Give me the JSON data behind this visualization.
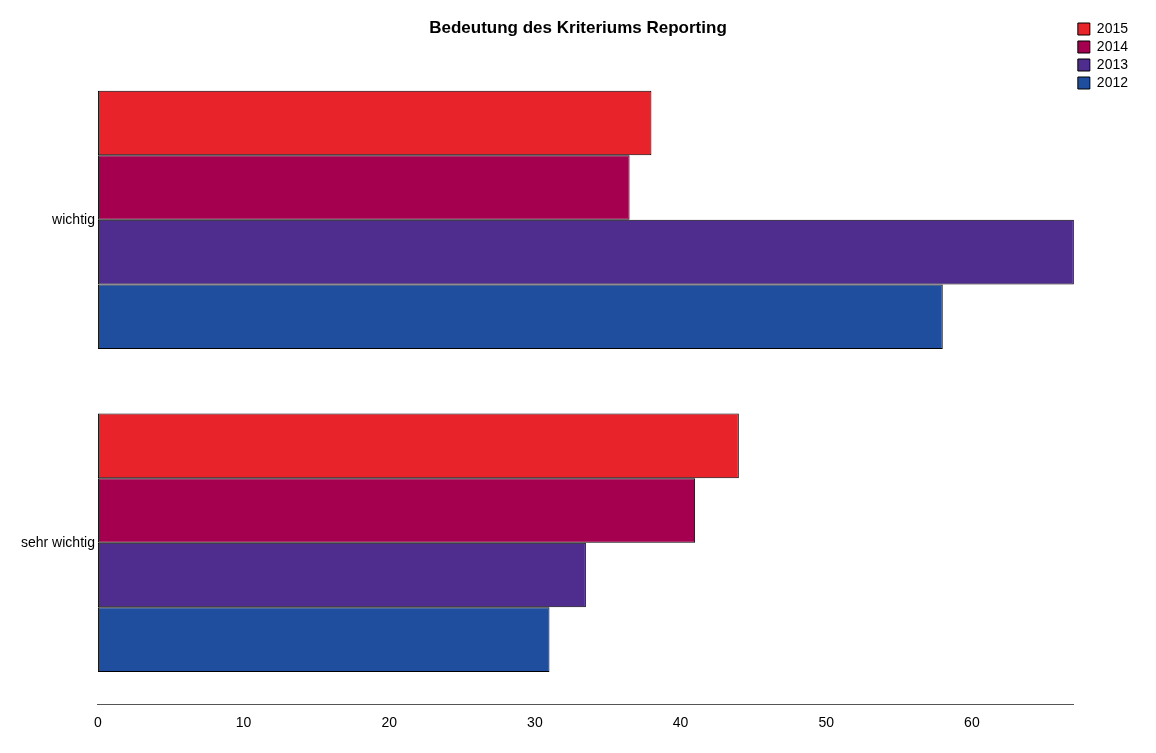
{
  "chart_data": {
    "type": "bar",
    "orientation": "horizontal",
    "title": "Bedeutung des Kriteriums Reporting",
    "categories": [
      "wichtig",
      "sehr wichtig"
    ],
    "series": [
      {
        "name": "2015",
        "color": "#e8232a",
        "values": [
          38,
          44
        ]
      },
      {
        "name": "2014",
        "color": "#a50050",
        "values": [
          36.5,
          41
        ]
      },
      {
        "name": "2013",
        "color": "#4f2d8e",
        "values": [
          67,
          33.5
        ]
      },
      {
        "name": "2012",
        "color": "#1f4e9e",
        "values": [
          58,
          31
        ]
      }
    ],
    "xlim": [
      0,
      67
    ],
    "xticks": [
      0,
      10,
      20,
      30,
      40,
      50,
      60
    ],
    "grid": false,
    "legend": "top right"
  }
}
